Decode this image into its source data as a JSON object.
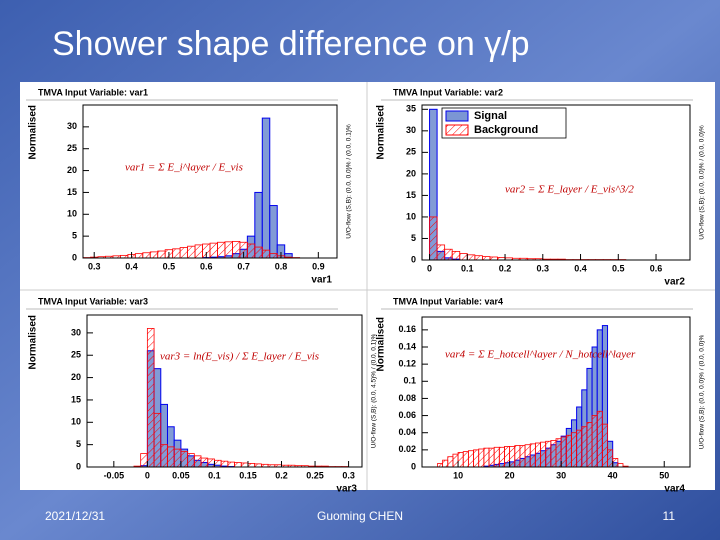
{
  "slide": {
    "title": "Shower shape difference on γ/p",
    "date": "2021/12/31",
    "author": "Guoming CHEN",
    "page": "11"
  },
  "chart_data": [
    {
      "type": "histogram",
      "title": "TMVA Input Variable: var1",
      "ylabel": "Normalised",
      "xlabel": "var1",
      "side_note": "U/O-flow (S,B): (0.0, 0.0)% / (0.0, 0.1)%",
      "annotation": "var1 = Σ E_i^layer / E_vis",
      "bins": [
        0.27,
        0.29,
        0.31,
        0.33,
        0.35,
        0.37,
        0.39,
        0.41,
        0.43,
        0.45,
        0.47,
        0.49,
        0.51,
        0.53,
        0.55,
        0.57,
        0.59,
        0.61,
        0.63,
        0.65,
        0.67,
        0.69,
        0.71,
        0.73,
        0.75,
        0.77,
        0.79,
        0.81,
        0.83,
        0.85,
        0.87,
        0.89,
        0.91,
        0.93,
        0.95
      ],
      "series": [
        {
          "color": "#0000ee",
          "fill": "#7b96d4",
          "hatch": false,
          "values": [
            0,
            0,
            0,
            0,
            0,
            0,
            0,
            0,
            0,
            0,
            0,
            0,
            0,
            0,
            0,
            0,
            0.1,
            0.2,
            0.3,
            0.5,
            1,
            2,
            5,
            15,
            32,
            12,
            3,
            1,
            0,
            0,
            0,
            0,
            0,
            0
          ]
        },
        {
          "color": "#ff0000",
          "fill": "#ff0000",
          "hatch": true,
          "values": [
            0.1,
            0.2,
            0.3,
            0.4,
            0.5,
            0.6,
            0.8,
            1.0,
            1.2,
            1.4,
            1.6,
            1.9,
            2.1,
            2.4,
            2.7,
            3.0,
            3.2,
            3.4,
            3.6,
            3.7,
            3.8,
            3.6,
            3.2,
            2.5,
            1.8,
            1.0,
            0.5,
            0.2,
            0.1,
            0,
            0,
            0,
            0,
            0
          ]
        }
      ],
      "xlim": [
        0.27,
        0.95
      ],
      "ylim": [
        0,
        35
      ],
      "xticks": [
        0.3,
        0.4,
        0.5,
        0.6,
        0.7,
        0.8,
        0.9
      ],
      "yticks": [
        0,
        5,
        10,
        15,
        20,
        25,
        30
      ]
    },
    {
      "type": "histogram",
      "title": "TMVA Input Variable: var2",
      "ylabel": "Normalised",
      "xlabel": "var2",
      "side_note": "U/O-flow (S,B): (0.0, 0.0)% / (0.0, 0.0)%",
      "annotation": "var2 = Σ E_layer / E_vis^3/2",
      "bins": [
        -0.02,
        0,
        0.02,
        0.04,
        0.06,
        0.08,
        0.1,
        0.12,
        0.14,
        0.16,
        0.18,
        0.2,
        0.22,
        0.24,
        0.26,
        0.28,
        0.3,
        0.32,
        0.34,
        0.36,
        0.38,
        0.4,
        0.42,
        0.44,
        0.46,
        0.48,
        0.5,
        0.52,
        0.54,
        0.56,
        0.58,
        0.6,
        0.62,
        0.64,
        0.66,
        0.68
      ],
      "series": [
        {
          "name": "Signal",
          "color": "#0000ee",
          "fill": "#7b96d4",
          "hatch": false,
          "values": [
            0,
            35,
            2,
            0.5,
            0.2,
            0,
            0,
            0,
            0,
            0,
            0,
            0,
            0,
            0,
            0,
            0,
            0,
            0,
            0,
            0,
            0,
            0,
            0,
            0,
            0,
            0,
            0,
            0,
            0,
            0,
            0,
            0,
            0,
            0,
            0
          ]
        },
        {
          "name": "Background",
          "color": "#ff0000",
          "fill": "#ff0000",
          "hatch": true,
          "values": [
            0,
            10,
            3.5,
            2.5,
            2,
            1.5,
            1.2,
            1.0,
            0.8,
            0.7,
            0.6,
            0.5,
            0.4,
            0.4,
            0.3,
            0.3,
            0.2,
            0.2,
            0.2,
            0.1,
            0.1,
            0.1,
            0.1,
            0.1,
            0.1,
            0.1,
            0.1,
            0,
            0,
            0,
            0,
            0,
            0,
            0,
            0
          ]
        }
      ],
      "legend": "top-left",
      "xlim": [
        -0.02,
        0.69
      ],
      "ylim": [
        0,
        36
      ],
      "xticks": [
        0,
        0.1,
        0.2,
        0.3,
        0.4,
        0.5,
        0.6
      ],
      "yticks": [
        0,
        5,
        10,
        15,
        20,
        25,
        30,
        35
      ]
    },
    {
      "type": "histogram",
      "title": "TMVA Input Variable: var3",
      "ylabel": "Normalised",
      "xlabel": "var3",
      "side_note": "U/O-flow (S,B): (0.0, 4.5)% / (0.0, 0.1)%",
      "annotation": "var3 = ln(E_vis) / Σ E_layer / E_vis",
      "bins": [
        -0.09,
        -0.08,
        -0.07,
        -0.06,
        -0.05,
        -0.04,
        -0.03,
        -0.02,
        -0.01,
        0,
        0.01,
        0.02,
        0.03,
        0.04,
        0.05,
        0.06,
        0.07,
        0.08,
        0.09,
        0.1,
        0.11,
        0.12,
        0.13,
        0.14,
        0.15,
        0.16,
        0.17,
        0.18,
        0.19,
        0.2,
        0.21,
        0.22,
        0.23,
        0.24,
        0.25,
        0.26,
        0.27,
        0.28,
        0.29,
        0.3,
        0.31,
        0.32
      ],
      "series": [
        {
          "color": "#0000ee",
          "fill": "#7b96d4",
          "hatch": false,
          "values": [
            0,
            0,
            0,
            0,
            0,
            0,
            0,
            0,
            0.3,
            26,
            22,
            14,
            9,
            6,
            4,
            2.5,
            1.5,
            1.0,
            0.6,
            0.4,
            0.2,
            0.1,
            0,
            0,
            0,
            0,
            0,
            0,
            0,
            0,
            0,
            0,
            0,
            0,
            0,
            0,
            0,
            0,
            0,
            0,
            0
          ]
        },
        {
          "color": "#ff0000",
          "fill": "#ff0000",
          "hatch": true,
          "values": [
            0,
            0,
            0,
            0,
            0,
            0,
            0,
            0.2,
            3,
            31,
            12,
            5,
            4.5,
            4,
            3.5,
            3,
            2.5,
            2,
            1.8,
            1.5,
            1.3,
            1.1,
            1.0,
            0.9,
            0.8,
            0.7,
            0.6,
            0.5,
            0.5,
            0.4,
            0.4,
            0.3,
            0.3,
            0.2,
            0.2,
            0.2,
            0.1,
            0.1,
            0.1,
            0,
            0
          ]
        }
      ],
      "xlim": [
        -0.09,
        0.32
      ],
      "ylim": [
        0,
        34
      ],
      "xticks": [
        -0.05,
        0,
        0.05,
        0.1,
        0.15,
        0.2,
        0.25,
        0.3
      ],
      "yticks": [
        0,
        5,
        10,
        15,
        20,
        25,
        30
      ]
    },
    {
      "type": "histogram",
      "title": "TMVA Input Variable: var4",
      "ylabel": "Normalised",
      "xlabel": "var4",
      "side_note": "U/O-flow (S,B): (0.0, 0.0)% / (0.0, 0.0)%",
      "annotation": "var4 = Σ E_hotcell^layer / N_hotcell^layer",
      "bins": [
        5,
        6,
        7,
        8,
        9,
        10,
        11,
        12,
        13,
        14,
        15,
        16,
        17,
        18,
        19,
        20,
        21,
        22,
        23,
        24,
        25,
        26,
        27,
        28,
        29,
        30,
        31,
        32,
        33,
        34,
        35,
        36,
        37,
        38,
        39,
        40,
        41,
        42,
        43,
        44,
        45
      ],
      "series": [
        {
          "color": "#0000ee",
          "fill": "#7b96d4",
          "hatch": false,
          "values": [
            0,
            0,
            0,
            0,
            0,
            0,
            0,
            0,
            0,
            0,
            0.001,
            0.002,
            0.003,
            0.004,
            0.005,
            0.006,
            0.008,
            0.01,
            0.012,
            0.014,
            0.016,
            0.019,
            0.022,
            0.026,
            0.03,
            0.036,
            0.045,
            0.055,
            0.07,
            0.09,
            0.115,
            0.14,
            0.16,
            0.165,
            0.03,
            0.005,
            0,
            0,
            0,
            0
          ]
        },
        {
          "color": "#ff0000",
          "fill": "#ff0000",
          "hatch": true,
          "values": [
            0,
            0.004,
            0.008,
            0.012,
            0.015,
            0.017,
            0.018,
            0.019,
            0.02,
            0.021,
            0.022,
            0.022,
            0.023,
            0.023,
            0.024,
            0.024,
            0.025,
            0.025,
            0.026,
            0.027,
            0.028,
            0.029,
            0.03,
            0.031,
            0.033,
            0.035,
            0.037,
            0.04,
            0.043,
            0.047,
            0.052,
            0.06,
            0.065,
            0.05,
            0.02,
            0.01,
            0.004,
            0.001,
            0,
            0
          ]
        }
      ],
      "xlim": [
        3,
        55
      ],
      "ylim": [
        0,
        0.175
      ],
      "xticks": [
        10,
        20,
        30,
        40,
        50
      ],
      "yticks": [
        0,
        0.02,
        0.04,
        0.06,
        0.08,
        0.1,
        0.12,
        0.14,
        0.16
      ]
    }
  ]
}
